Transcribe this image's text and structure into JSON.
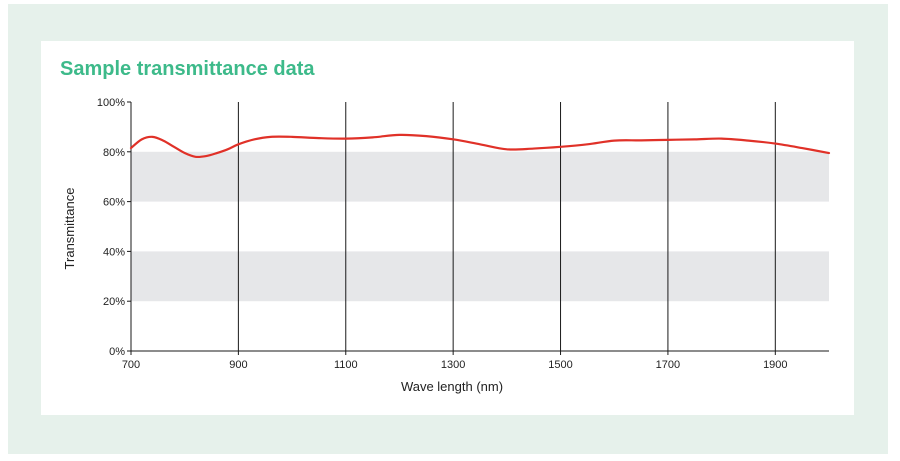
{
  "page": {
    "title": "Sample transmittance data"
  },
  "chart_data": {
    "type": "line",
    "title": "Sample transmittance data",
    "xlabel": "Wave length (nm)",
    "ylabel": "Transmittance",
    "xlim": [
      700,
      2000
    ],
    "ylim": [
      0,
      100
    ],
    "x_ticks": [
      700,
      900,
      1100,
      1300,
      1500,
      1700,
      1900
    ],
    "x_tick_labels": [
      "700",
      "900",
      "1100",
      "1300",
      "1500",
      "1700",
      "1900"
    ],
    "y_ticks": [
      0,
      20,
      40,
      60,
      80,
      100
    ],
    "y_tick_labels": [
      "0%",
      "20%",
      "40%",
      "60%",
      "80%",
      "100%"
    ],
    "vertical_gridlines": [
      900,
      1100,
      1300,
      1500,
      1700,
      1900
    ],
    "horizontal_bands": [
      [
        20,
        40
      ],
      [
        60,
        80
      ]
    ],
    "colors": {
      "line": "#e03128",
      "band": "#e6e7e9",
      "title": "#3dba8a",
      "background": "#e6f1eb"
    },
    "series": [
      {
        "x": [
          700,
          720,
          740,
          760,
          780,
          800,
          820,
          840,
          860,
          880,
          900,
          930,
          960,
          1000,
          1050,
          1100,
          1150,
          1200,
          1250,
          1300,
          1350,
          1400,
          1450,
          1500,
          1550,
          1600,
          1650,
          1700,
          1750,
          1800,
          1850,
          1900,
          1950,
          2000
        ],
        "y": [
          81.5,
          85.0,
          86.0,
          84.5,
          82.0,
          79.5,
          78.0,
          78.3,
          79.5,
          81.0,
          83.0,
          85.0,
          86.0,
          86.0,
          85.5,
          85.3,
          85.8,
          86.8,
          86.3,
          85.0,
          83.0,
          81.0,
          81.3,
          82.0,
          83.0,
          84.5,
          84.6,
          84.8,
          85.0,
          85.3,
          84.5,
          83.3,
          81.5,
          79.5
        ]
      }
    ]
  }
}
